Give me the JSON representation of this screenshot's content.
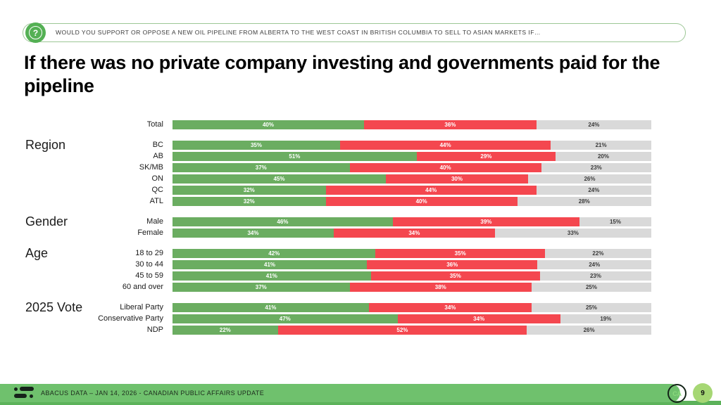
{
  "header": {
    "icon": "question-mark-icon",
    "question": "WOULD YOU SUPPORT OR OPPOSE A NEW OIL PIPELINE FROM ALBERTA TO THE WEST COAST IN BRITISH COLUMBIA TO SELL TO ASIAN MARKETS IF…"
  },
  "title": "If there was no private company investing and governments paid for the pipeline",
  "chart_data": {
    "type": "bar",
    "orientation": "horizontal-stacked",
    "unit": "%",
    "series": [
      {
        "name": "support",
        "color": "#6BAD61"
      },
      {
        "name": "oppose",
        "color": "#F4474F"
      },
      {
        "name": "unsure",
        "color": "#D9D9D9"
      }
    ],
    "groups": [
      {
        "label": "",
        "rows": [
          {
            "label": "Total",
            "values": [
              40,
              36,
              24
            ]
          }
        ]
      },
      {
        "label": "Region",
        "rows": [
          {
            "label": "BC",
            "values": [
              35,
              44,
              21
            ]
          },
          {
            "label": "AB",
            "values": [
              51,
              29,
              20
            ]
          },
          {
            "label": "SK/MB",
            "values": [
              37,
              40,
              23
            ]
          },
          {
            "label": "ON",
            "values": [
              45,
              30,
              26
            ]
          },
          {
            "label": "QC",
            "values": [
              32,
              44,
              24
            ]
          },
          {
            "label": "ATL",
            "values": [
              32,
              40,
              28
            ]
          }
        ]
      },
      {
        "label": "Gender",
        "rows": [
          {
            "label": "Male",
            "values": [
              46,
              39,
              15
            ]
          },
          {
            "label": "Female",
            "values": [
              34,
              34,
              33
            ]
          }
        ]
      },
      {
        "label": "Age",
        "rows": [
          {
            "label": "18 to 29",
            "values": [
              42,
              35,
              22
            ]
          },
          {
            "label": "30 to 44",
            "values": [
              41,
              36,
              24
            ]
          },
          {
            "label": "45 to 59",
            "values": [
              41,
              35,
              23
            ]
          },
          {
            "label": "60 and over",
            "values": [
              37,
              38,
              25
            ]
          }
        ]
      },
      {
        "label": "2025 Vote",
        "rows": [
          {
            "label": "Liberal Party",
            "values": [
              41,
              34,
              25
            ]
          },
          {
            "label": "Conservative Party",
            "values": [
              47,
              34,
              19
            ]
          },
          {
            "label": "NDP",
            "values": [
              22,
              52,
              26
            ]
          }
        ]
      }
    ]
  },
  "footer": {
    "logo": "abacus-data-logo",
    "text": "ABACUS DATA – JAN 14, 2026 - CANADIAN PUBLIC AFFAIRS UPDATE",
    "badge": "CA",
    "page": "9"
  }
}
